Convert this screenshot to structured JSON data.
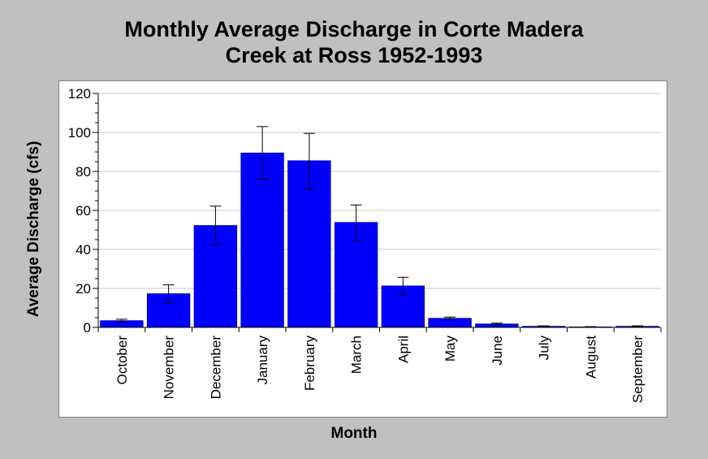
{
  "chart_data": {
    "type": "bar",
    "title_line1": "Monthly Average Discharge in Corte Madera",
    "title_line2": "Creek at Ross 1952-1993",
    "xlabel": "Month",
    "ylabel": "Average Discharge (cfs)",
    "ylim": [
      0,
      120
    ],
    "yticks": [
      0,
      20,
      40,
      60,
      80,
      100,
      120
    ],
    "grid": true,
    "bar_color": "#0000ff",
    "categories": [
      "October",
      "November",
      "December",
      "January",
      "February",
      "March",
      "April",
      "May",
      "June",
      "July",
      "August",
      "September"
    ],
    "values": [
      3.5,
      17.3,
      52.3,
      89.5,
      85.5,
      53.9,
      21.3,
      4.7,
      1.8,
      0.6,
      0.3,
      0.6
    ],
    "error_low": [
      2.8,
      12.5,
      42.5,
      76,
      71,
      44.5,
      16.5,
      4,
      1.4,
      0.4,
      0.2,
      0.4
    ],
    "error_high": [
      4.2,
      21.8,
      62.2,
      103,
      99.5,
      62.8,
      25.7,
      5.3,
      2.2,
      0.8,
      0.4,
      0.8
    ]
  }
}
